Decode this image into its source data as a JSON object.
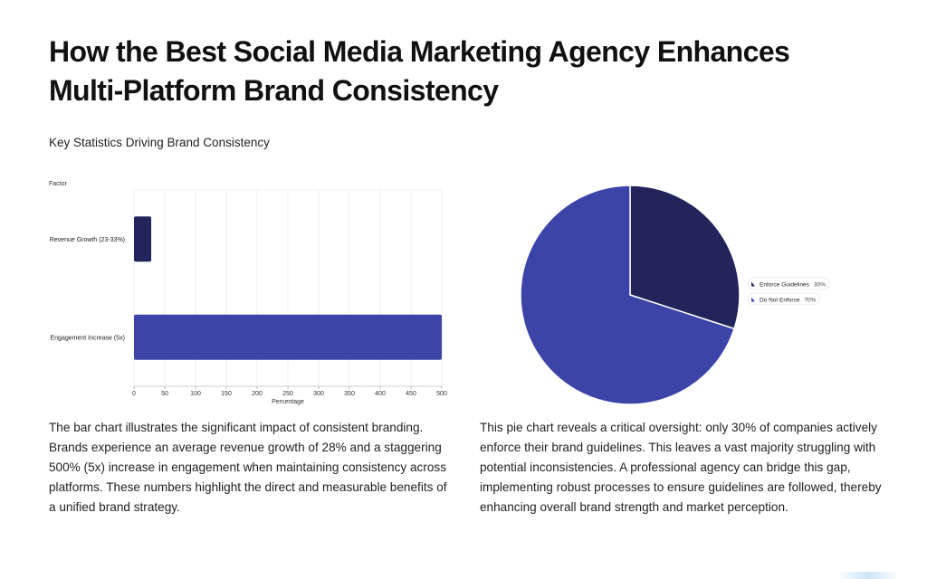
{
  "page": {
    "title": "How the Best Social Media Marketing Agency Enhances Multi-Platform Brand Consistency",
    "subtitle": "Key Statistics Driving Brand Consistency",
    "bar_description": "The bar chart illustrates the significant impact of consistent branding. Brands experience an average revenue growth of 28% and a staggering 500% (5x) increase in engagement when maintaining consistency across platforms. These numbers highlight the direct and measurable benefits of a unified brand strategy.",
    "pie_description": "This pie chart reveals a critical oversight: only 30% of companies actively enforce their brand guidelines. This leaves a vast majority struggling with potential inconsistencies. A professional agency can bridge this gap, implementing robust processes to ensure guidelines are followed, thereby enhancing overall brand strength and market perception."
  },
  "chart_data": [
    {
      "type": "bar",
      "orientation": "horizontal",
      "ylabel": "Factor",
      "xlabel": "Percentage",
      "categories": [
        "Revenue Growth (23-33%)",
        "Engagement Increase (5x)"
      ],
      "values": [
        28,
        500
      ],
      "xlim": [
        0,
        500
      ],
      "xticks": [
        0,
        50,
        100,
        150,
        200,
        250,
        300,
        350,
        400,
        450,
        500
      ],
      "grid": true,
      "colors": [
        "#22245c",
        "#3c44a8"
      ]
    },
    {
      "type": "pie",
      "labels": [
        "Enforce Guidelines",
        "Do Not Enforce"
      ],
      "values": [
        30,
        70
      ],
      "value_labels": [
        "30%",
        "70%"
      ],
      "colors": [
        "#22245c",
        "#3c44a8"
      ],
      "legend": "right"
    }
  ]
}
